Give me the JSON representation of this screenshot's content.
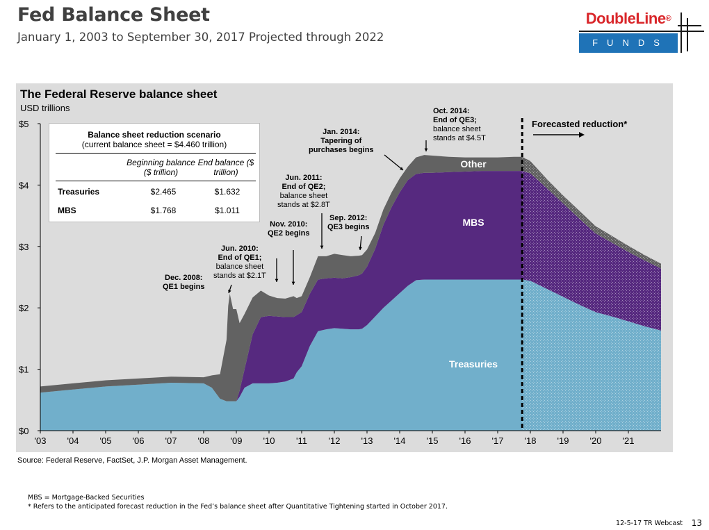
{
  "slide": {
    "title": "Fed Balance Sheet",
    "subtitle": "January 1, 2003 to September 30, 2017 Projected through 2022",
    "source": "Source: Federal Reserve, FactSet, J.P. Morgan Asset Management.",
    "footnote_1": "MBS = Mortgage-Backed Securities",
    "footnote_2": "* Refers to the anticipated forecast reduction in the Fed’s balance sheet after Quantitative Tightening started in October 2017.",
    "page_ref": "12-5-17 TR Webcast",
    "page_number": "13"
  },
  "logo": {
    "brand": "DoubleLine",
    "reg": "®",
    "sub": "FUNDS",
    "brand_color": "#d9262a",
    "sub_bg": "#1f73b7"
  },
  "table": {
    "title": "Balance sheet reduction scenario",
    "subtitle": "(current balance sheet = $4.460 trillion)",
    "col1": "Beginning balance ($ trillion)",
    "col2": "End balance ($ trillion)",
    "rows": [
      {
        "label": "Treasuries",
        "begin": "$2.465",
        "end": "$1.632"
      },
      {
        "label": "MBS",
        "begin": "$1.768",
        "end": "$1.011"
      }
    ]
  },
  "annotations": {
    "dec2008": [
      "Dec. 2008:",
      "QE1 begins"
    ],
    "jun2010": [
      "Jun. 2010:",
      "End of QE1;",
      "balance sheet",
      "stands at $2.1T"
    ],
    "nov2010": [
      "Nov. 2010:",
      "QE2 begins"
    ],
    "jun2011": [
      "Jun. 2011:",
      "End of QE2;",
      "balance sheet",
      "stands at $2.8T"
    ],
    "sep2012": [
      "Sep. 2012:",
      "QE3 begins"
    ],
    "jan2014": [
      "Jan. 2014:",
      "Tapering of",
      "purchases begins"
    ],
    "oct2014": [
      "Oct. 2014:",
      "End of QE3;",
      "balance sheet",
      "stands at $4.5T"
    ],
    "forecast": "Forecasted reduction*"
  },
  "chart_data": {
    "type": "area",
    "title": "The Federal Reserve balance sheet",
    "unit": "USD trillions",
    "stacked": true,
    "x_tick_labels": [
      "'03",
      "'04",
      "'05",
      "'06",
      "'07",
      "'08",
      "'09",
      "'10",
      "'11",
      "'12",
      "'13",
      "'14",
      "'15",
      "'16",
      "'17",
      "'18",
      "'19",
      "'20",
      "'21"
    ],
    "y_tick_labels": [
      "$0",
      "$1",
      "$2",
      "$3",
      "$4",
      "$5"
    ],
    "ylim": [
      0,
      5
    ],
    "xlim": [
      2003.0,
      2022.0
    ],
    "forecast_start": 2017.75,
    "colors": {
      "Treasuries": "#71afcb",
      "MBS": "#56297f",
      "Other": "#626262",
      "forecast_line": "#000000"
    },
    "x": [
      2003.0,
      2004.0,
      2005.0,
      2006.0,
      2007.0,
      2008.0,
      2008.25,
      2008.5,
      2008.7,
      2008.75,
      2008.8,
      2008.9,
      2009.0,
      2009.1,
      2009.25,
      2009.5,
      2009.75,
      2010.0,
      2010.25,
      2010.5,
      2010.75,
      2010.85,
      2011.0,
      2011.25,
      2011.5,
      2011.75,
      2012.0,
      2012.25,
      2012.5,
      2012.75,
      2012.85,
      2013.0,
      2013.25,
      2013.5,
      2013.75,
      2014.0,
      2014.25,
      2014.5,
      2014.75,
      2015.0,
      2015.5,
      2016.0,
      2016.5,
      2017.0,
      2017.5,
      2017.75,
      2018.0,
      2018.5,
      2019.0,
      2019.5,
      2020.0,
      2020.5,
      2021.0,
      2021.5,
      2022.0
    ],
    "series": [
      {
        "name": "Treasuries",
        "values": [
          0.62,
          0.67,
          0.72,
          0.75,
          0.78,
          0.77,
          0.7,
          0.52,
          0.48,
          0.48,
          0.48,
          0.48,
          0.48,
          0.55,
          0.7,
          0.77,
          0.77,
          0.77,
          0.78,
          0.8,
          0.85,
          0.95,
          1.05,
          1.38,
          1.62,
          1.65,
          1.67,
          1.66,
          1.65,
          1.65,
          1.66,
          1.72,
          1.86,
          2.0,
          2.12,
          2.24,
          2.36,
          2.45,
          2.46,
          2.46,
          2.46,
          2.46,
          2.46,
          2.46,
          2.46,
          2.46,
          2.44,
          2.31,
          2.18,
          2.05,
          1.93,
          1.86,
          1.78,
          1.7,
          1.63
        ]
      },
      {
        "name": "MBS",
        "values": [
          0,
          0,
          0,
          0,
          0,
          0,
          0,
          0,
          0,
          0,
          0,
          0,
          0,
          0.1,
          0.3,
          0.8,
          1.08,
          1.1,
          1.08,
          1.05,
          1.0,
          0.93,
          0.88,
          0.85,
          0.84,
          0.83,
          0.82,
          0.82,
          0.85,
          0.88,
          0.9,
          0.95,
          1.1,
          1.35,
          1.52,
          1.64,
          1.72,
          1.73,
          1.74,
          1.74,
          1.75,
          1.76,
          1.77,
          1.77,
          1.77,
          1.77,
          1.75,
          1.64,
          1.52,
          1.4,
          1.28,
          1.2,
          1.13,
          1.07,
          1.01
        ]
      },
      {
        "name": "Other",
        "values": [
          0.1,
          0.1,
          0.1,
          0.1,
          0.1,
          0.1,
          0.2,
          0.4,
          1.0,
          1.55,
          1.75,
          1.5,
          1.5,
          1.1,
          0.9,
          0.6,
          0.43,
          0.33,
          0.3,
          0.3,
          0.34,
          0.28,
          0.26,
          0.27,
          0.38,
          0.36,
          0.39,
          0.38,
          0.34,
          0.32,
          0.3,
          0.28,
          0.26,
          0.25,
          0.24,
          0.23,
          0.22,
          0.27,
          0.29,
          0.28,
          0.25,
          0.23,
          0.22,
          0.22,
          0.23,
          0.23,
          0.2,
          0.15,
          0.13,
          0.13,
          0.12,
          0.11,
          0.1,
          0.09,
          0.08
        ]
      }
    ],
    "area_labels": [
      "Treasuries",
      "MBS",
      "Other"
    ]
  }
}
